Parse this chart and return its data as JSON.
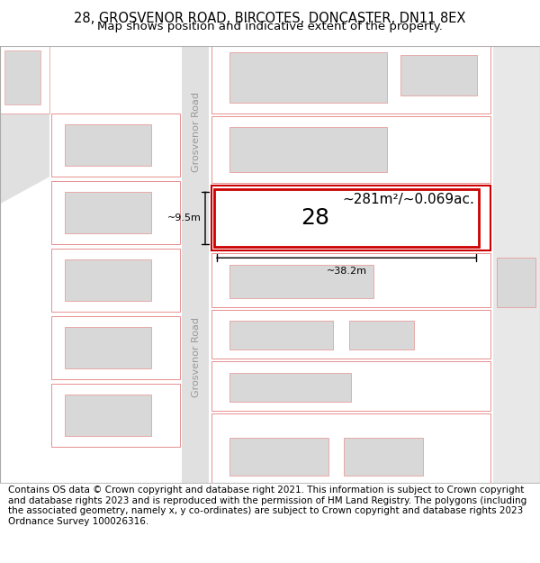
{
  "title_line1": "28, GROSVENOR ROAD, BIRCOTES, DONCASTER, DN11 8EX",
  "title_line2": "Map shows position and indicative extent of the property.",
  "footer_text": "Contains OS data © Crown copyright and database right 2021. This information is subject to Crown copyright and database rights 2023 and is reproduced with the permission of HM Land Registry. The polygons (including the associated geometry, namely x, y co-ordinates) are subject to Crown copyright and database rights 2023 Ordnance Survey 100026316.",
  "map_bg": "#f2f2f2",
  "road_color": "#e0e0e0",
  "plot_line_color": "#e89090",
  "highlight_color": "#cc0000",
  "building_fill": "#d8d8d8",
  "road_label": "Grosvenor Road",
  "property_number": "28",
  "area_label": "~281m²/~0.069ac.",
  "dim_width": "~38.2m",
  "dim_height": "~9.5m",
  "title_fontsize": 10.5,
  "subtitle_fontsize": 9.5,
  "footer_fontsize": 7.5
}
